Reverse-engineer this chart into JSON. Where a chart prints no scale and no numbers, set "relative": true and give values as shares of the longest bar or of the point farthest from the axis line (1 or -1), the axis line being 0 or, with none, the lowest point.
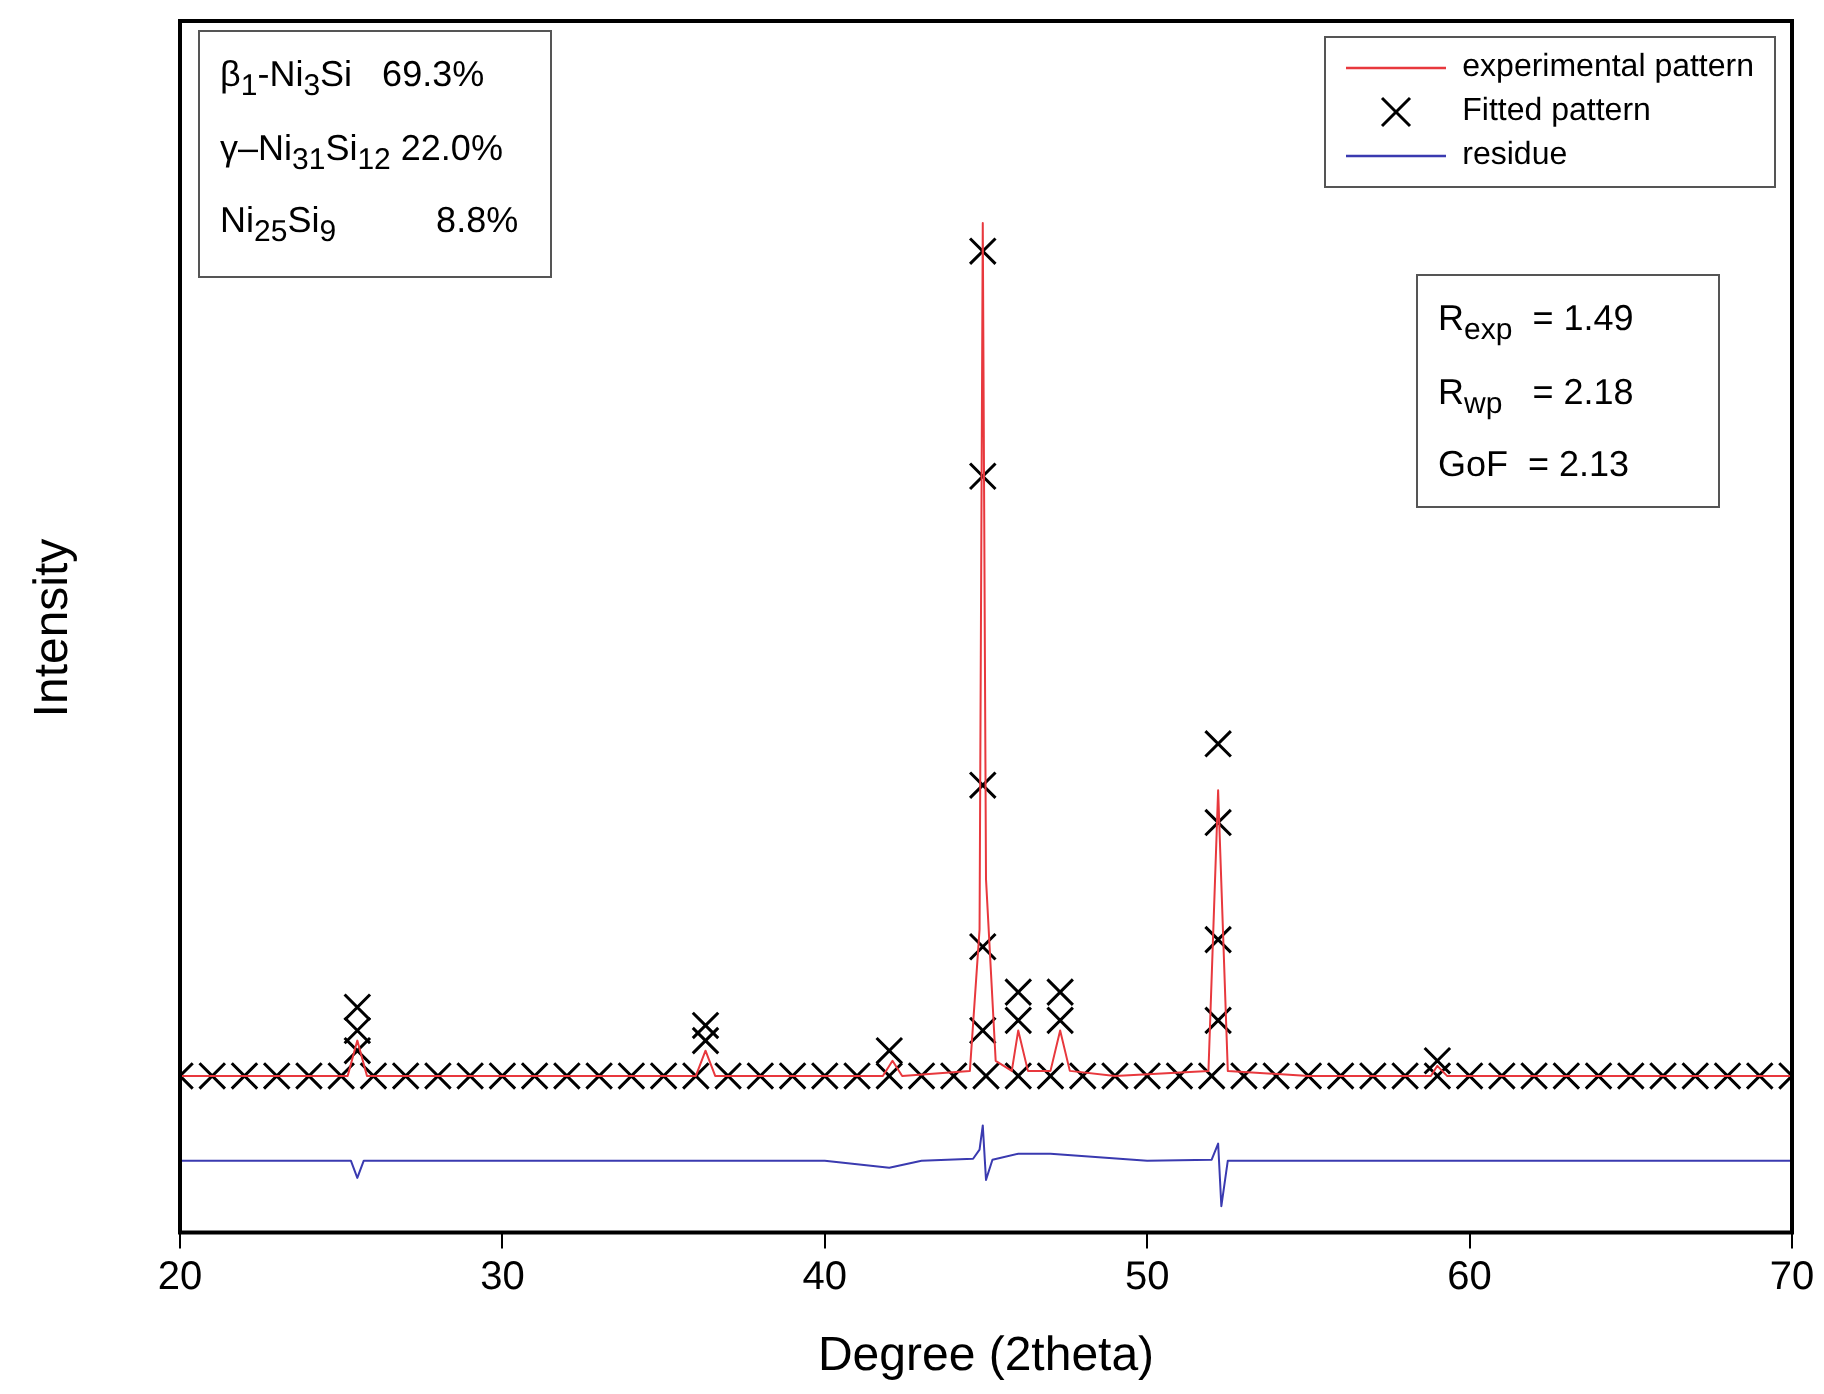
{
  "chart_data": {
    "type": "line",
    "xlabel": "Degree (2theta)",
    "ylabel": "Intensity",
    "relative": true,
    "xlim": [
      20,
      70
    ],
    "xticks": [
      20,
      30,
      40,
      50,
      60,
      70
    ],
    "legend": "top right",
    "annotations": [
      "β$_{1}$-Ni$_{3}$Si   69.3%",
      "γ–Ni$_{31}$Si$_{12}$ 22.0%",
      "Ni$_{25}$Si$_{9}$          8.8%",
      "R$_{exp}$  = 1.49",
      "R$_{wp}$   = 2.18",
      "GoF  = 2.13"
    ],
    "series": [
      {
        "name": "experimental pattern",
        "color": "#e8383d",
        "marker": "none",
        "x": [
          20,
          22,
          24,
          25.2,
          25.5,
          25.8,
          27,
          30,
          33,
          36.0,
          36.3,
          36.6,
          39,
          41.8,
          42.1,
          42.4,
          44.5,
          44.8,
          44.9,
          45.0,
          45.3,
          45.8,
          46.0,
          46.3,
          47.0,
          47.3,
          47.6,
          49,
          51.9,
          52.2,
          52.5,
          55,
          58.8,
          59.0,
          59.3,
          62,
          65,
          68,
          70
        ],
        "values": [
          0.155,
          0.155,
          0.155,
          0.155,
          0.19,
          0.155,
          0.155,
          0.155,
          0.155,
          0.155,
          0.18,
          0.155,
          0.155,
          0.155,
          0.17,
          0.155,
          0.16,
          0.3,
          1.0,
          0.35,
          0.17,
          0.16,
          0.2,
          0.16,
          0.16,
          0.2,
          0.16,
          0.155,
          0.16,
          0.438,
          0.16,
          0.155,
          0.155,
          0.165,
          0.155,
          0.155,
          0.155,
          0.155,
          0.155
        ]
      },
      {
        "name": "Fitted pattern",
        "type": "scatter",
        "color": "#000000",
        "marker": "cross",
        "x": [
          20,
          21,
          22,
          23,
          24,
          25,
          25.5,
          25.5,
          25.5,
          26,
          27,
          28,
          29,
          30,
          31,
          32,
          33,
          34,
          35,
          36,
          36.3,
          36.3,
          37,
          38,
          39,
          40,
          41,
          42,
          42,
          43,
          44,
          44.9,
          44.9,
          44.9,
          44.9,
          44.9,
          45,
          46,
          46,
          46,
          47,
          47.3,
          47.3,
          48,
          49,
          50,
          51,
          52,
          52.2,
          52.2,
          52.2,
          52.2,
          53,
          54,
          55,
          56,
          57,
          58,
          59,
          59,
          60,
          61,
          62,
          63,
          64,
          65,
          66,
          67,
          68,
          69,
          70
        ],
        "values": [
          0.155,
          0.155,
          0.155,
          0.155,
          0.155,
          0.155,
          0.223,
          0.2,
          0.18,
          0.155,
          0.155,
          0.155,
          0.155,
          0.155,
          0.155,
          0.155,
          0.155,
          0.155,
          0.155,
          0.155,
          0.205,
          0.19,
          0.155,
          0.155,
          0.155,
          0.155,
          0.155,
          0.155,
          0.18,
          0.155,
          0.155,
          0.972,
          0.749,
          0.443,
          0.283,
          0.2,
          0.155,
          0.155,
          0.238,
          0.21,
          0.155,
          0.238,
          0.21,
          0.155,
          0.155,
          0.155,
          0.155,
          0.155,
          0.484,
          0.406,
          0.29,
          0.21,
          0.155,
          0.155,
          0.155,
          0.155,
          0.155,
          0.155,
          0.155,
          0.17,
          0.155,
          0.155,
          0.155,
          0.155,
          0.155,
          0.155,
          0.155,
          0.155,
          0.155,
          0.155,
          0.155
        ]
      },
      {
        "name": "residue",
        "type": "line",
        "color": "#3a3ab0",
        "marker": "none",
        "x": [
          20,
          25.3,
          25.5,
          25.7,
          30,
          35,
          40,
          42,
          43,
          44.6,
          44.8,
          44.9,
          45.0,
          45.2,
          46,
          47,
          50,
          52.0,
          52.2,
          52.3,
          52.5,
          55,
          60,
          65,
          70
        ],
        "values": [
          0.071,
          0.071,
          0.054,
          0.071,
          0.071,
          0.071,
          0.071,
          0.064,
          0.071,
          0.073,
          0.082,
          0.106,
          0.052,
          0.072,
          0.078,
          0.078,
          0.071,
          0.072,
          0.088,
          0.026,
          0.071,
          0.071,
          0.071,
          0.071,
          0.071
        ]
      }
    ]
  }
}
